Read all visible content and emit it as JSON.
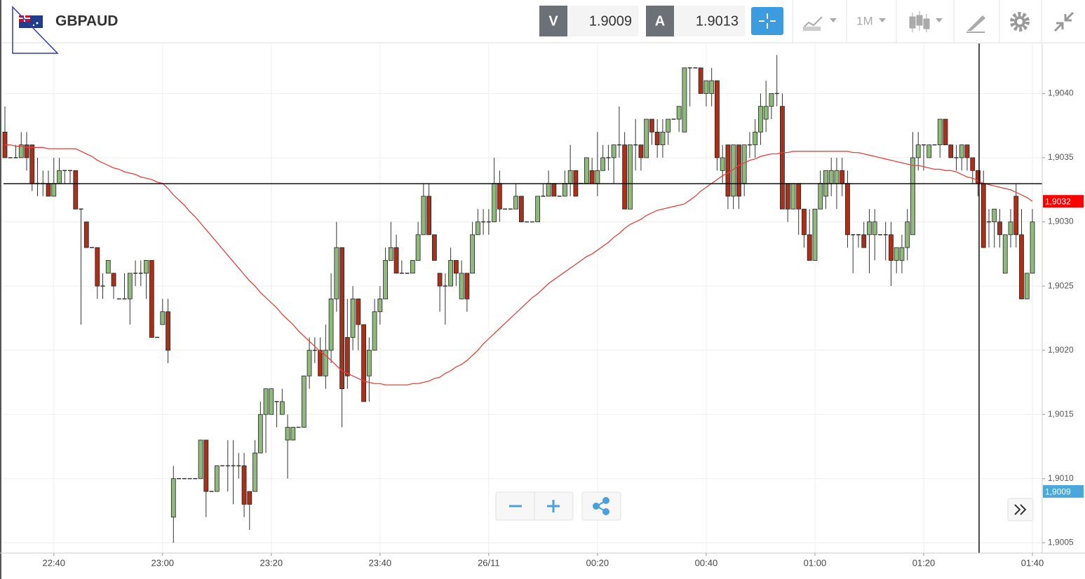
{
  "header": {
    "symbol": "GBPAUD",
    "bid_label": "V",
    "bid": 1.9009,
    "ask_label": "A",
    "ask": 1.9013,
    "timeframe": "1M"
  },
  "chart_data": {
    "type": "candlestick",
    "categories": [
      null,
      null,
      null,
      null,
      null,
      null,
      null,
      null,
      null,
      "22:40",
      null,
      null,
      null,
      null,
      null,
      null,
      null,
      null,
      null,
      null,
      null,
      null,
      null,
      null,
      null,
      null,
      null,
      null,
      null,
      "23:00",
      null,
      null,
      null,
      null,
      null,
      null,
      null,
      null,
      null,
      null,
      null,
      null,
      null,
      null,
      null,
      null,
      null,
      null,
      null,
      "23:20",
      null,
      null,
      null,
      null,
      null,
      null,
      null,
      null,
      null,
      null,
      null,
      null,
      null,
      null,
      null,
      null,
      null,
      null,
      null,
      "23:40",
      null,
      null,
      null,
      null,
      null,
      null,
      null,
      null,
      null,
      null,
      null,
      null,
      null,
      null,
      null,
      null,
      null,
      null,
      null,
      "26/11",
      null,
      null,
      null,
      null,
      null,
      null,
      null,
      null,
      null,
      null,
      null,
      null,
      null,
      null,
      null,
      null,
      null,
      null,
      null,
      "00:20",
      null,
      null,
      null,
      null,
      null,
      null,
      null,
      null,
      null,
      null,
      null,
      null,
      null,
      null,
      null,
      null,
      null,
      null,
      null,
      "00:40",
      null,
      null,
      null,
      null,
      null,
      null,
      null,
      null,
      null,
      null,
      null,
      null,
      null,
      null,
      null,
      null,
      null,
      null,
      null,
      "01:00",
      null,
      null,
      null,
      null,
      null,
      null,
      null,
      null,
      null,
      null,
      null,
      null,
      null,
      null,
      null,
      null,
      null,
      null,
      null,
      "01:20",
      null,
      null,
      null,
      null,
      null,
      null,
      null,
      null,
      null,
      null,
      null,
      null,
      null,
      null,
      null,
      null,
      null,
      null,
      null,
      "01:40"
    ],
    "open": [
      1.9037,
      1.9035,
      1.9035,
      1.9035,
      1.9036,
      1.9036,
      1.9033,
      1.9033,
      1.9033,
      1.9032,
      1.9033,
      1.9034,
      1.9034,
      1.9034,
      1.9031,
      1.903,
      1.9028,
      1.9028,
      1.9025,
      1.9026,
      1.9026,
      1.9024,
      1.9024,
      1.9024,
      1.9026,
      1.9026,
      1.9026,
      1.9027,
      1.9021,
      1.9022,
      1.9023,
      1.9007,
      1.901,
      1.901,
      1.901,
      1.901,
      1.901,
      1.9013,
      1.9009,
      1.9009,
      1.9011,
      1.9011,
      1.9011,
      1.9011,
      1.9011,
      1.9009,
      1.9009,
      1.9012,
      1.9015,
      1.9015,
      1.9016,
      1.9015,
      1.9013,
      1.9013,
      1.9014,
      1.9014,
      1.9018,
      1.902,
      1.902,
      1.9018,
      1.902,
      1.9024,
      1.9028,
      1.9021,
      1.9021,
      1.9024,
      1.9022,
      1.9018,
      1.902,
      1.9023,
      1.9024,
      1.9027,
      1.9028,
      1.9026,
      1.9026,
      1.9026,
      1.9027,
      1.9029,
      1.9032,
      1.9029,
      1.9026,
      1.9025,
      1.9025,
      1.9027,
      1.9024,
      1.9026,
      1.9026,
      1.9029,
      1.903,
      1.903,
      1.903,
      1.9033,
      1.9031,
      1.9031,
      1.9031,
      1.9032,
      1.903,
      1.903,
      1.903,
      1.9032,
      1.9032,
      1.9033,
      1.9032,
      1.9032,
      1.9033,
      1.9034,
      1.9033,
      1.9033,
      1.9034,
      1.9033,
      1.9034,
      1.9035,
      1.9035,
      1.9036,
      1.9036,
      1.9031,
      1.9036,
      1.9036,
      1.9035,
      1.9038,
      1.9037,
      1.9036,
      1.9037,
      1.9038,
      1.9038,
      1.9037,
      1.9042,
      1.9042,
      1.9042,
      1.904,
      1.904,
      1.9041,
      1.9034,
      1.9036,
      1.9032,
      1.9036,
      1.9033,
      1.9036,
      1.9036,
      1.9037,
      1.9038,
      1.9039,
      1.904,
      1.9039,
      1.9033,
      1.9031,
      1.9033,
      1.9031,
      1.9029,
      1.9027,
      1.9031,
      1.9032,
      1.9033,
      1.9033,
      1.9034,
      1.9033,
      1.9029,
      1.9029,
      1.9029,
      1.9029,
      1.9029,
      1.9029,
      1.9029,
      1.9029,
      1.9027,
      1.9027,
      1.9028,
      1.9029,
      1.9035,
      1.9036,
      1.9035,
      1.9036,
      1.9036,
      1.9038,
      1.9036,
      1.9035,
      1.9035,
      1.9036,
      1.9035,
      1.9034,
      1.9033,
      1.903,
      1.903,
      1.903,
      1.9026,
      1.9029,
      1.9032,
      1.9029,
      1.9024,
      1.9026
    ],
    "high": [
      1.9039,
      1.9035,
      1.9036,
      1.9037,
      1.9037,
      1.9036,
      1.9035,
      1.9034,
      1.9034,
      1.9035,
      1.9035,
      1.9034,
      1.9034,
      1.9034,
      1.9031,
      1.903,
      1.9028,
      1.9028,
      1.9026,
      1.9027,
      1.9026,
      1.9024,
      1.9026,
      1.9026,
      1.9027,
      1.9027,
      1.9027,
      1.9027,
      1.9021,
      1.9024,
      1.9024,
      1.9011,
      1.901,
      1.901,
      1.901,
      1.901,
      1.9013,
      1.9013,
      1.9009,
      1.9011,
      1.9011,
      1.9013,
      1.9013,
      1.9012,
      1.9012,
      1.9009,
      1.9013,
      1.9016,
      1.9017,
      1.9017,
      1.9016,
      1.9017,
      1.9015,
      1.9014,
      1.9014,
      1.9018,
      1.9021,
      1.9021,
      1.9021,
      1.9022,
      1.9026,
      1.903,
      1.9028,
      1.9024,
      1.9025,
      1.9024,
      1.9022,
      1.9021,
      1.9024,
      1.9025,
      1.9028,
      1.903,
      1.9029,
      1.9027,
      1.9026,
      1.9027,
      1.903,
      1.9033,
      1.9033,
      1.9029,
      1.9026,
      1.9026,
      1.9028,
      1.9027,
      1.9027,
      1.9026,
      1.903,
      1.9031,
      1.9031,
      1.9031,
      1.9035,
      1.9034,
      1.9031,
      1.9031,
      1.9033,
      1.9032,
      1.903,
      1.903,
      1.9032,
      1.9033,
      1.9034,
      1.9033,
      1.9032,
      1.9034,
      1.9036,
      1.9034,
      1.9033,
      1.9035,
      1.9035,
      1.9037,
      1.9036,
      1.9036,
      1.9036,
      1.9039,
      1.9037,
      1.9036,
      1.9038,
      1.9036,
      1.9038,
      1.9038,
      1.9038,
      1.9038,
      1.9038,
      1.9038,
      1.9039,
      1.9042,
      1.9042,
      1.9042,
      1.9042,
      1.9041,
      1.9042,
      1.9041,
      1.9036,
      1.9036,
      1.9036,
      1.9036,
      1.9036,
      1.9037,
      1.9038,
      1.904,
      1.9041,
      1.904,
      1.9043,
      1.904,
      1.9033,
      1.9033,
      1.9033,
      1.9031,
      1.9031,
      1.9031,
      1.9034,
      1.9034,
      1.9035,
      1.9035,
      1.9035,
      1.9034,
      1.9029,
      1.9029,
      1.903,
      1.9031,
      1.9031,
      1.9029,
      1.903,
      1.903,
      1.9028,
      1.9029,
      1.9031,
      1.9037,
      1.9037,
      1.9036,
      1.9036,
      1.9036,
      1.9038,
      1.9038,
      1.9036,
      1.9036,
      1.9036,
      1.9036,
      1.9035,
      1.9034,
      1.9034,
      1.9031,
      1.9031,
      1.9031,
      1.9029,
      1.9031,
      1.9033,
      1.9031,
      1.9026,
      1.9031
    ],
    "low": [
      1.9035,
      1.9035,
      1.9035,
      1.9035,
      1.9034,
      1.90324,
      1.9032,
      1.9032,
      1.9032,
      1.9032,
      1.9033,
      1.9033,
      1.9033,
      1.9031,
      1.9022,
      1.9028,
      1.9028,
      1.9024,
      1.9024,
      1.9026,
      1.9024,
      1.9024,
      1.9024,
      1.9022,
      1.9025,
      1.9025,
      1.9024,
      1.9021,
      1.9021,
      1.9022,
      1.9019,
      1.9005,
      1.901,
      1.901,
      1.901,
      1.901,
      1.901,
      1.9007,
      1.9009,
      1.9009,
      1.9011,
      1.9009,
      1.9008,
      1.901,
      1.9007,
      1.9006,
      1.9009,
      1.9012,
      1.9012,
      1.9015,
      1.9014,
      1.9015,
      1.901,
      1.9013,
      1.9014,
      1.9014,
      1.9017,
      1.9019,
      1.9018,
      1.9017,
      1.9019,
      1.9023,
      1.9014,
      1.9017,
      1.902,
      1.902,
      1.9016,
      1.9016,
      1.902,
      1.9022,
      1.9024,
      1.9027,
      1.9026,
      1.9026,
      1.9026,
      1.9026,
      1.9027,
      1.9029,
      1.9029,
      1.9027,
      1.9023,
      1.9022,
      1.9025,
      1.9025,
      1.9024,
      1.9023,
      1.9026,
      1.9029,
      1.9029,
      1.9029,
      1.903,
      1.903,
      1.9031,
      1.9031,
      1.9031,
      1.903,
      1.903,
      1.903,
      1.903,
      1.9032,
      1.9032,
      1.9032,
      1.9032,
      1.9032,
      1.9032,
      1.9032,
      1.9033,
      1.9033,
      1.9033,
      1.9032,
      1.9034,
      1.9034,
      1.9033,
      1.9035,
      1.9031,
      1.9031,
      1.9034,
      1.9034,
      1.9035,
      1.9036,
      1.9035,
      1.9035,
      1.9036,
      1.9038,
      1.9037,
      1.9037,
      1.9039,
      1.9042,
      1.904,
      1.9039,
      1.9039,
      1.9034,
      1.9033,
      1.9031,
      1.9031,
      1.9031,
      1.9032,
      1.9035,
      1.9035,
      1.9036,
      1.9037,
      1.9038,
      1.9039,
      1.9031,
      1.903,
      1.9031,
      1.9029,
      1.9028,
      1.9027,
      1.9027,
      1.9031,
      1.9031,
      1.9032,
      1.9031,
      1.9032,
      1.9028,
      1.9026,
      1.9028,
      1.9028,
      1.9026,
      1.9027,
      1.9029,
      1.9027,
      1.9025,
      1.9026,
      1.9026,
      1.9027,
      1.9029,
      1.9034,
      1.9034,
      1.9035,
      1.9036,
      1.9035,
      1.9036,
      1.9035,
      1.9034,
      1.9034,
      1.9034,
      1.9033,
      1.9032,
      1.9028,
      1.9028,
      1.9028,
      1.9028,
      1.9026,
      1.9028,
      1.9028,
      1.9024,
      1.9024,
      1.9026
    ],
    "close": [
      1.9035,
      1.9035,
      1.9035,
      1.9036,
      1.9035,
      1.9033,
      1.9033,
      1.9033,
      1.9032,
      1.9033,
      1.9034,
      1.9034,
      1.9034,
      1.9031,
      1.9031,
      1.9028,
      1.9028,
      1.9025,
      1.9025,
      1.9027,
      1.9025,
      1.9024,
      1.9024,
      1.9026,
      1.9026,
      1.9026,
      1.9027,
      1.9021,
      1.9021,
      1.9023,
      1.902,
      1.901,
      1.901,
      1.901,
      1.901,
      1.901,
      1.9013,
      1.9009,
      1.9009,
      1.9011,
      1.9011,
      1.9011,
      1.9011,
      1.9011,
      1.9008,
      1.9008,
      1.9012,
      1.9015,
      1.9017,
      1.9017,
      1.9016,
      1.9016,
      1.9014,
      1.9014,
      1.9014,
      1.9018,
      1.902,
      1.902,
      1.9018,
      1.902,
      1.9024,
      1.9028,
      1.9017,
      1.9018,
      1.9024,
      1.9022,
      1.9016,
      1.902,
      1.9023,
      1.9024,
      1.9027,
      1.9028,
      1.9026,
      1.9026,
      1.9026,
      1.9027,
      1.9029,
      1.9032,
      1.9029,
      1.9027,
      1.9025,
      1.9025,
      1.9027,
      1.9026,
      1.9026,
      1.9024,
      1.9029,
      1.903,
      1.903,
      1.903,
      1.9033,
      1.9031,
      1.9031,
      1.9031,
      1.9032,
      1.903,
      1.903,
      1.903,
      1.9032,
      1.9032,
      1.9033,
      1.9032,
      1.9032,
      1.9033,
      1.9034,
      1.9032,
      1.9033,
      1.9035,
      1.9033,
      1.9034,
      1.9035,
      1.9035,
      1.9036,
      1.9036,
      1.9031,
      1.9036,
      1.9036,
      1.9035,
      1.9038,
      1.9037,
      1.9036,
      1.9037,
      1.9038,
      1.9038,
      1.9039,
      1.9042,
      1.9042,
      1.9042,
      1.904,
      1.9041,
      1.9041,
      1.9035,
      1.9035,
      1.9032,
      1.9036,
      1.9032,
      1.9036,
      1.9036,
      1.9037,
      1.9039,
      1.9039,
      1.904,
      1.904,
      1.9031,
      1.9031,
      1.9033,
      1.9031,
      1.9029,
      1.9027,
      1.9031,
      1.9033,
      1.9034,
      1.9034,
      1.9034,
      1.9033,
      1.9029,
      1.9029,
      1.9029,
      1.9028,
      1.903,
      1.903,
      1.9029,
      1.9029,
      1.9027,
      1.9028,
      1.9028,
      1.903,
      1.9035,
      1.9036,
      1.9036,
      1.9036,
      1.9036,
      1.9038,
      1.9036,
      1.9035,
      1.9035,
      1.9036,
      1.9035,
      1.9034,
      1.9033,
      1.9028,
      1.903,
      1.9031,
      1.9029,
      1.9029,
      1.903,
      1.9029,
      1.9024,
      1.9026,
      1.903
    ],
    "up_color": "#8fba7c",
    "down_color": "#a9301a",
    "flat_color": "#333333",
    "moving_average": {
      "color": "#e8413c",
      "values": [
        1.9036,
        1.9036,
        1.90359,
        1.90359,
        1.90358,
        1.90358,
        1.90358,
        1.90358,
        1.90357,
        1.90357,
        1.90357,
        1.90357,
        1.90357,
        1.90357,
        1.90355,
        1.90353,
        1.90351,
        1.90348,
        1.90346,
        1.90344,
        1.90342,
        1.90341,
        1.90339,
        1.90338,
        1.90337,
        1.90335,
        1.90334,
        1.90333,
        1.90331,
        1.9033,
        1.90326,
        1.90321,
        1.90317,
        1.90313,
        1.90308,
        1.90304,
        1.90299,
        1.90294,
        1.90289,
        1.90284,
        1.90279,
        1.90274,
        1.90269,
        1.90264,
        1.90259,
        1.90254,
        1.9025,
        1.90245,
        1.90241,
        1.90237,
        1.90233,
        1.90228,
        1.90224,
        1.9022,
        1.90215,
        1.90211,
        1.90207,
        1.90203,
        1.90199,
        1.90196,
        1.90192,
        1.90188,
        1.90184,
        1.90182,
        1.9018,
        1.90178,
        1.90176,
        1.90175,
        1.90174,
        1.90174,
        1.90173,
        1.90173,
        1.90173,
        1.90173,
        1.90173,
        1.90174,
        1.90174,
        1.90175,
        1.90176,
        1.90178,
        1.90179,
        1.90182,
        1.90184,
        1.90187,
        1.90189,
        1.90192,
        1.90196,
        1.902,
        1.90205,
        1.90209,
        1.90213,
        1.90217,
        1.90221,
        1.90225,
        1.90229,
        1.90233,
        1.90237,
        1.90241,
        1.90244,
        1.90248,
        1.90252,
        1.90255,
        1.90258,
        1.90261,
        1.90264,
        1.90267,
        1.9027,
        1.90273,
        1.90275,
        1.90278,
        1.90281,
        1.90284,
        1.90288,
        1.90291,
        1.90295,
        1.90298,
        1.903,
        1.90302,
        1.90305,
        1.90307,
        1.90309,
        1.9031,
        1.90311,
        1.90312,
        1.90313,
        1.90314,
        1.90317,
        1.9032,
        1.90324,
        1.90327,
        1.9033,
        1.90333,
        1.90336,
        1.90338,
        1.90341,
        1.90344,
        1.90346,
        1.90348,
        1.90349,
        1.90351,
        1.90352,
        1.90353,
        1.90353,
        1.90354,
        1.90354,
        1.90355,
        1.90355,
        1.90355,
        1.90355,
        1.90355,
        1.90355,
        1.90355,
        1.90355,
        1.90355,
        1.90355,
        1.90355,
        1.90354,
        1.90354,
        1.90353,
        1.90352,
        1.90351,
        1.9035,
        1.90349,
        1.90348,
        1.90347,
        1.90346,
        1.90345,
        1.90344,
        1.90344,
        1.90343,
        1.90342,
        1.90341,
        1.90341,
        1.9034,
        1.9034,
        1.90339,
        1.90337,
        1.90335,
        1.90334,
        1.90332,
        1.9033,
        1.90329,
        1.90328,
        1.90327,
        1.90326,
        1.90325,
        1.90323,
        1.90321,
        1.90319,
        1.90316
      ]
    },
    "ylim": [
      1.90042,
      1.90439
    ],
    "yticks": [
      {
        "value": 1.9005,
        "label": "1,9005"
      },
      {
        "value": 1.901,
        "label": "1,9010"
      },
      {
        "value": 1.9015,
        "label": "1,9015"
      },
      {
        "value": 1.902,
        "label": "1,9020"
      },
      {
        "value": 1.9025,
        "label": "1,9025"
      },
      {
        "value": 1.903,
        "label": "1,9030"
      },
      {
        "value": 1.9035,
        "label": "1,9035"
      },
      {
        "value": 1.904,
        "label": "1,9040"
      }
    ],
    "grid": true,
    "markers": [
      {
        "value": 1.90316,
        "label": "1,9032",
        "color": "#ff0000"
      },
      {
        "value": 1.9009,
        "label": "1,9009",
        "color": "#4aa8dc"
      }
    ]
  }
}
